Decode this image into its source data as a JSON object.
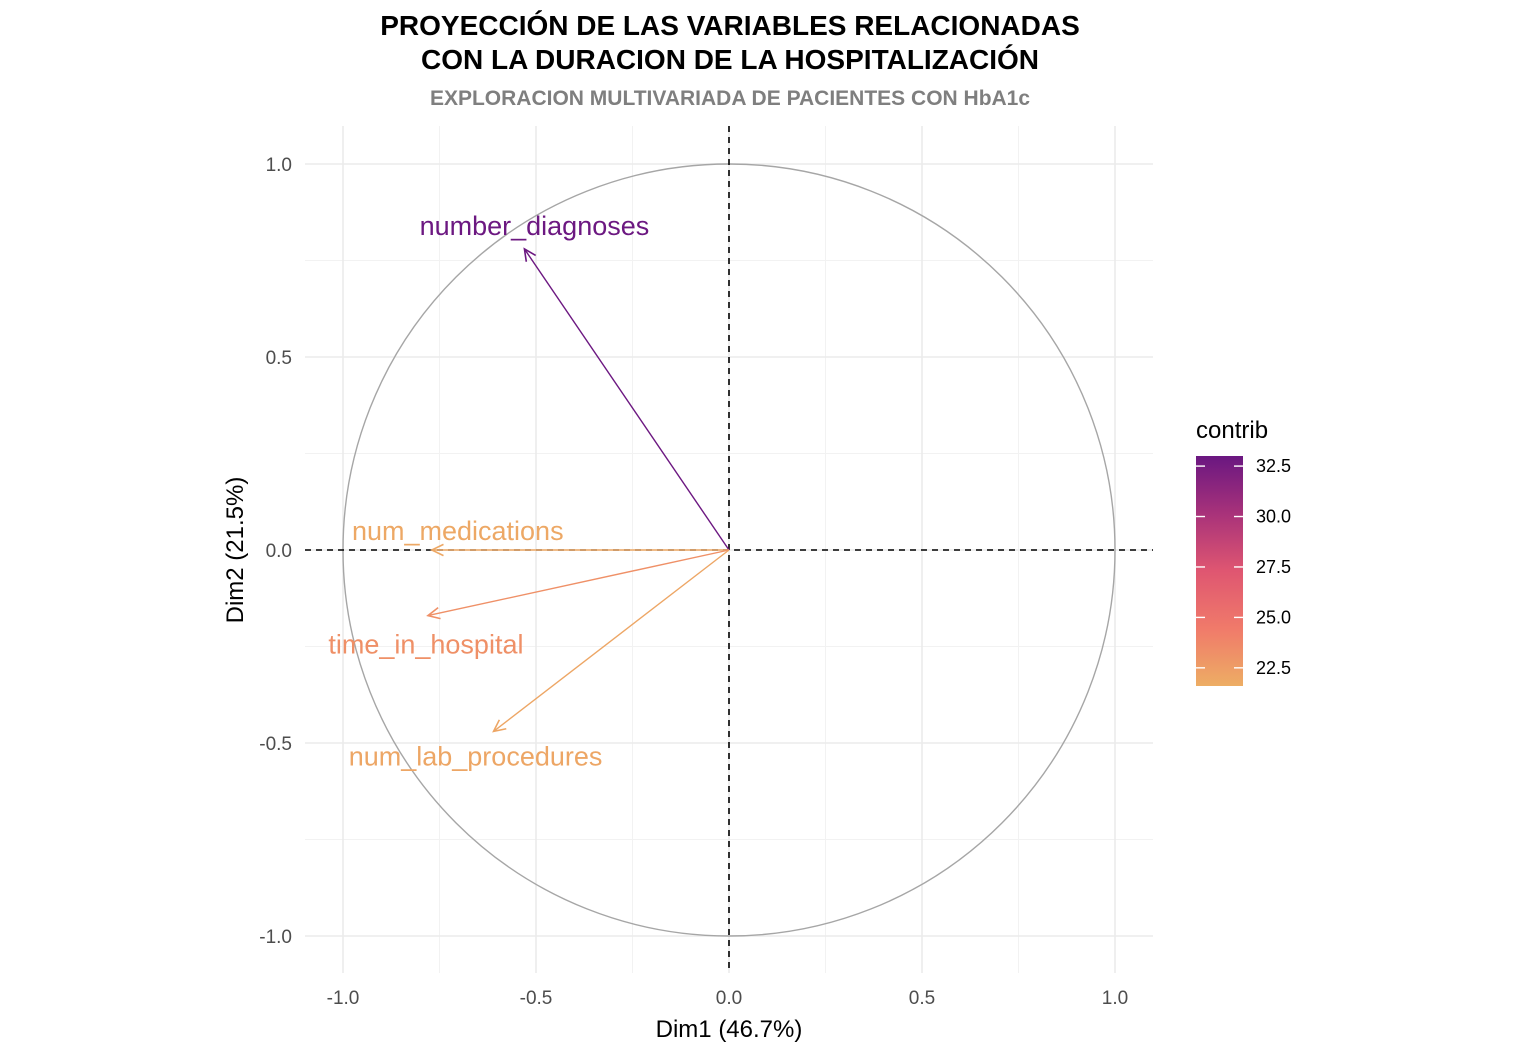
{
  "chart_data": {
    "type": "scatter",
    "title": [
      "PROYECCIÓN DE LAS VARIABLES RELACIONADAS",
      "CON LA DURACION DE LA HOSPITALIZACIÓN"
    ],
    "subtitle": "EXPLORACION MULTIVARIADA DE PACIENTES CON HbA1c",
    "xlabel": "Dim1 (46.7%)",
    "ylabel": "Dim2 (21.5%)",
    "xlim": [
      -1.1,
      1.1
    ],
    "ylim": [
      -1.1,
      1.1
    ],
    "xticks": [
      -1.0,
      -0.5,
      0.0,
      0.5,
      1.0
    ],
    "yticks": [
      -1.0,
      -0.5,
      0.0,
      0.5,
      1.0
    ],
    "xtick_labels": [
      "-1.0",
      "-0.5",
      "0.0",
      "0.5",
      "1.0"
    ],
    "ytick_labels": [
      "-1.0",
      "-0.5",
      "0.0",
      "0.5",
      "1.0"
    ],
    "grid": true,
    "unit_circle": true,
    "variables": [
      {
        "name": "number_diagnoses",
        "x": -0.53,
        "y": 0.78,
        "contrib": 32.9
      },
      {
        "name": "num_medications",
        "x": -0.77,
        "y": 0.0,
        "contrib": 21.9
      },
      {
        "name": "time_in_hospital",
        "x": -0.78,
        "y": -0.17,
        "contrib": 23.2
      },
      {
        "name": "num_lab_procedures",
        "x": -0.61,
        "y": -0.47,
        "contrib": 22.0
      }
    ],
    "legend": {
      "title": "contrib",
      "position": "right",
      "min": 21.6,
      "max": 33.0,
      "ticks": [
        22.5,
        25.0,
        27.5,
        30.0,
        32.5
      ],
      "tick_labels": [
        "22.5",
        "25.0",
        "27.5",
        "30.0",
        "32.5"
      ],
      "colors": [
        "#edad64",
        "#f07a6a",
        "#df5671",
        "#a8327a",
        "#6a1781"
      ]
    }
  }
}
